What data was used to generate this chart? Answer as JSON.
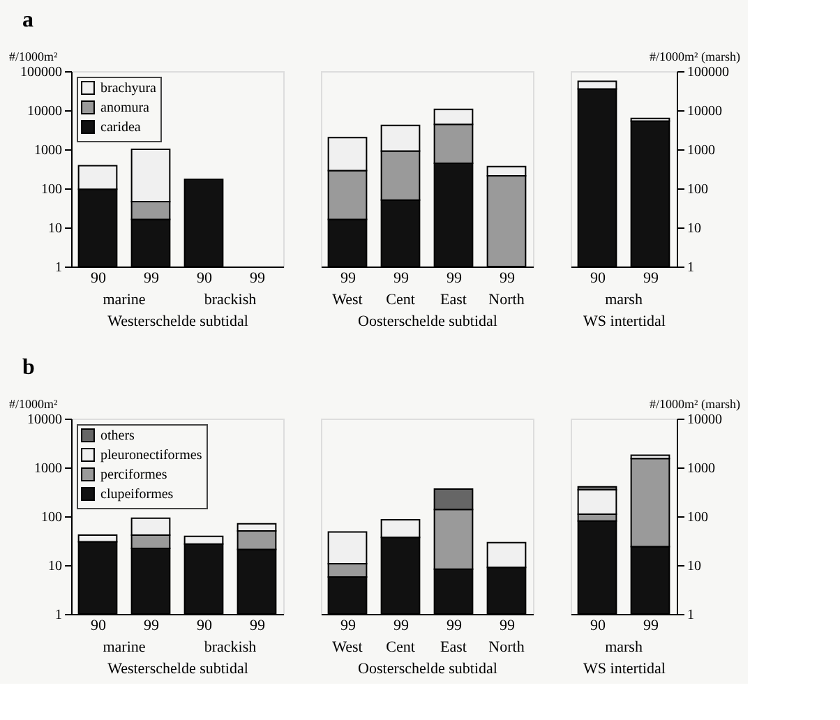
{
  "chart_data": [
    {
      "type": "bar",
      "title": "a",
      "stacked": true,
      "log": "y",
      "ylabel": "#/1000m²",
      "xlabel": "Westerschelde subtidal",
      "categories": [
        "90",
        "99",
        "90",
        "99"
      ],
      "annotations": [
        "marine",
        "brackish"
      ],
      "ylim": [
        1,
        100000
      ],
      "yticks": [
        1,
        10,
        100,
        1000,
        10000,
        100000
      ],
      "legend": "top left",
      "series": [
        {
          "name": "caridea",
          "color": "#111111",
          "values": [
            95,
            16,
            170,
            null
          ]
        },
        {
          "name": "anomura",
          "color": "#9a9a9a",
          "values": [
            null,
            30,
            null,
            null
          ]
        },
        {
          "name": "brachyura",
          "color": "#f0f0f0",
          "values": [
            285,
            950,
            null,
            null
          ]
        }
      ]
    },
    {
      "type": "bar",
      "stacked": true,
      "log": "y",
      "xlabel": "Oosterschelde subtidal",
      "categories": [
        "99",
        "99",
        "99",
        "99"
      ],
      "annotations": [
        "West",
        "Cent",
        "East",
        "North"
      ],
      "ylim": [
        1,
        100000
      ],
      "tick_labels": "x",
      "series": [
        {
          "color": "#111111",
          "values": [
            16,
            50,
            440,
            null
          ]
        },
        {
          "color": "#9a9a9a",
          "values": [
            270,
            850,
            3900,
            210
          ]
        },
        {
          "color": "#f0f0f0",
          "values": [
            1700,
            3200,
            6200,
            150
          ]
        }
      ]
    },
    {
      "type": "bar",
      "stacked": true,
      "log": "y2",
      "xlabel": "WS intertidal",
      "y2label": "#/1000m² (marsh)",
      "categories": [
        "90",
        "99"
      ],
      "annotations": [
        "marsh"
      ],
      "y2lim": [
        1,
        100000
      ],
      "y2ticks": [
        1,
        10,
        100,
        1000,
        10000,
        100000
      ],
      "series": [
        {
          "color": "#111111",
          "axis": "y2",
          "values": [
            35000,
            5300
          ]
        },
        {
          "color": "#f0f0f0",
          "axis": "y2",
          "values": [
            20000,
            900
          ]
        }
      ]
    },
    {
      "type": "bar",
      "title": "b",
      "stacked": true,
      "log": "y",
      "ylabel": "#/1000m²",
      "xlabel": "Westerschelde subtidal",
      "categories": [
        "90",
        "99",
        "90",
        "99"
      ],
      "annotations": [
        "marine",
        "brackish"
      ],
      "ylim": [
        1,
        10000
      ],
      "yticks": [
        1,
        10,
        100,
        1000,
        10000
      ],
      "legend": "top left",
      "series": [
        {
          "name": "clupeiformes",
          "color": "#111111",
          "values": [
            30,
            22,
            27,
            21
          ]
        },
        {
          "name": "perciformes",
          "color": "#9a9a9a",
          "values": [
            null,
            19,
            null,
            29
          ]
        },
        {
          "name": "pleuronectiformes",
          "color": "#f0f0f0",
          "values": [
            11,
            50,
            12,
            20
          ]
        },
        {
          "name": "others",
          "color": "#666666",
          "values": [
            null,
            null,
            null,
            null
          ]
        }
      ]
    },
    {
      "type": "bar",
      "stacked": true,
      "log": "y",
      "xlabel": "Oosterschelde subtidal",
      "categories": [
        "99",
        "99",
        "99",
        "99"
      ],
      "annotations": [
        "West",
        "Cent",
        "East",
        "North"
      ],
      "ylim": [
        1,
        10000
      ],
      "tick_labels": "x",
      "series": [
        {
          "color": "#111111",
          "values": [
            5.7,
            37,
            8.3,
            9
          ]
        },
        {
          "color": "#9a9a9a",
          "values": [
            5,
            null,
            129,
            null
          ]
        },
        {
          "color": "#f0f0f0",
          "values": [
            37,
            48,
            null,
            20
          ]
        },
        {
          "color": "#666666",
          "values": [
            null,
            null,
            223,
            null
          ]
        }
      ]
    },
    {
      "type": "bar",
      "stacked": true,
      "log": "y2",
      "xlabel": "WS intertidal",
      "y2label": "#/1000m² (marsh)",
      "categories": [
        "90",
        "99"
      ],
      "annotations": [
        "marsh"
      ],
      "y2lim": [
        1,
        10000
      ],
      "y2ticks": [
        1,
        10,
        100,
        1000,
        10000
      ],
      "series": [
        {
          "color": "#111111",
          "axis": "y2",
          "values": [
            80,
            24
          ]
        },
        {
          "color": "#9a9a9a",
          "axis": "y2",
          "values": [
            30,
            1500
          ]
        },
        {
          "color": "#f0f0f0",
          "axis": "y2",
          "values": [
            240,
            250
          ]
        },
        {
          "color": "#666666",
          "axis": "y2",
          "values": [
            50,
            null
          ]
        }
      ]
    }
  ]
}
